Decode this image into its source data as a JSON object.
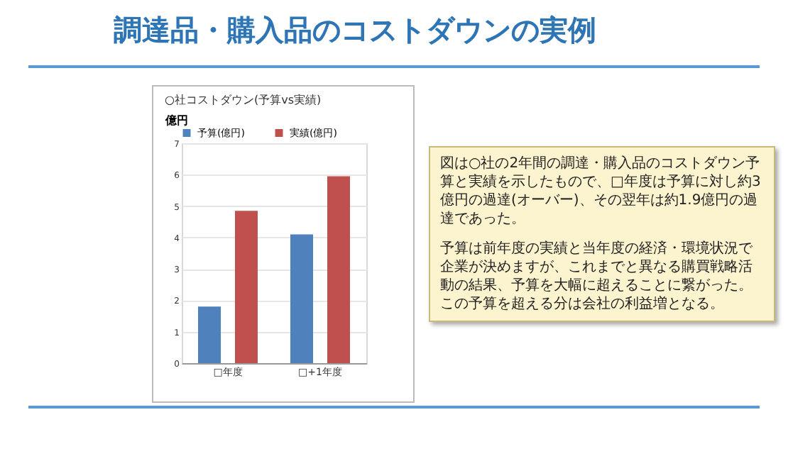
{
  "chart_data": {
    "type": "bar",
    "title": "調達品・購入品のコストダウンの実例",
    "subtitle": "○社コストダウン(予算vs実績)",
    "ylabel": "億円",
    "categories": [
      "□年度",
      "□+1年度"
    ],
    "series": [
      {
        "name": "予算(億円)",
        "color": "#4f81bd",
        "values": [
          1.8,
          4.1
        ]
      },
      {
        "name": "実績(億円)",
        "color": "#c0504d",
        "values": [
          4.85,
          5.95
        ]
      }
    ],
    "ylim": [
      0,
      7
    ],
    "yticks": [
      0,
      1,
      2,
      3,
      4,
      5,
      6,
      7
    ],
    "grid": "y",
    "legend": "top",
    "annotations": [
      "図は○社の2年間の調達・購入品のコストダウン予算と実績を示したもので、□年度は予算に対し約3億円の過達(オーバー)、その翌年は約1.9億円の過達であった。",
      "予算は前年度の実績と当年度の経済・環境状況で企業が決めますが、これまでと異なる購買戦略活動の結果、予算を大幅に超えることに繋がった。この予算を超える分は会社の利益増となる。"
    ]
  }
}
